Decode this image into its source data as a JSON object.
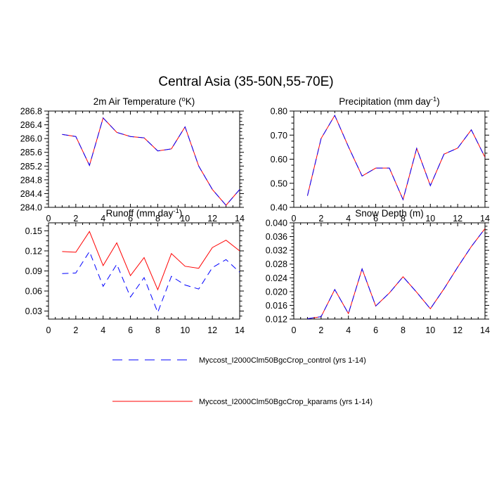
{
  "title": "Central Asia (35-50N,55-70E)",
  "legend": {
    "placement": "bottom-center",
    "entries": [
      {
        "label": "Myccost_I2000Clm50BgcCrop_control (yrs 1-14)",
        "color": "#0000ff",
        "dash": "dashed"
      },
      {
        "label": "Myccost_I2000Clm50BgcCrop_kparams (yrs 1-14)",
        "color": "#ff0000",
        "dash": "solid"
      }
    ]
  },
  "chart_data": [
    {
      "type": "line",
      "title": "2m Air Temperature (°K)",
      "title_parts": [
        "2m Air Temperature (",
        "o",
        "K)"
      ],
      "xlim": [
        0,
        14
      ],
      "xticks": [
        0,
        2,
        4,
        6,
        8,
        10,
        12,
        14
      ],
      "ylim": [
        284.0,
        286.8
      ],
      "yticks": [
        284.0,
        284.4,
        284.8,
        285.2,
        285.6,
        286.0,
        286.4,
        286.8
      ],
      "ytick_labels": [
        "284.0",
        "284.4",
        "284.8",
        "285.2",
        "285.6",
        "286.0",
        "286.4",
        "286.8"
      ],
      "grid": false,
      "x": [
        1,
        2,
        3,
        4,
        5,
        6,
        7,
        8,
        9,
        10,
        11,
        12,
        13,
        14
      ],
      "series": [
        {
          "values": [
            286.12,
            286.06,
            285.22,
            286.6,
            286.18,
            286.06,
            286.02,
            285.64,
            285.7,
            286.34,
            285.2,
            284.52,
            284.06,
            284.52
          ]
        },
        {
          "values": [
            286.12,
            286.06,
            285.22,
            286.6,
            286.18,
            286.06,
            286.02,
            285.64,
            285.7,
            286.34,
            285.2,
            284.52,
            284.06,
            284.52
          ]
        }
      ]
    },
    {
      "type": "line",
      "title": "Precipitation (mm day-1)",
      "title_parts": [
        "Precipitation (mm day",
        "-1",
        ")"
      ],
      "xlim": [
        0,
        14
      ],
      "xticks": [
        0,
        2,
        4,
        6,
        8,
        10,
        12,
        14
      ],
      "ylim": [
        0.4,
        0.8
      ],
      "yticks": [
        0.4,
        0.5,
        0.6,
        0.7,
        0.8
      ],
      "ytick_labels": [
        "0.40",
        "0.50",
        "0.60",
        "0.70",
        "0.80"
      ],
      "grid": false,
      "x": [
        1,
        2,
        3,
        4,
        5,
        6,
        7,
        8,
        9,
        10,
        11,
        12,
        13,
        14
      ],
      "series": [
        {
          "values": [
            0.448,
            0.686,
            0.782,
            0.652,
            0.53,
            0.563,
            0.563,
            0.432,
            0.645,
            0.49,
            0.621,
            0.646,
            0.722,
            0.608
          ]
        },
        {
          "values": [
            0.448,
            0.686,
            0.782,
            0.652,
            0.53,
            0.563,
            0.563,
            0.432,
            0.645,
            0.49,
            0.621,
            0.646,
            0.722,
            0.608
          ]
        }
      ]
    },
    {
      "type": "line",
      "title": "Runoff (mm day-1)",
      "title_parts": [
        "Runoff (mm day",
        "-1",
        ")"
      ],
      "xlim": [
        0,
        14
      ],
      "xticks": [
        0,
        2,
        4,
        6,
        8,
        10,
        12,
        14
      ],
      "ylim": [
        0.018,
        0.162
      ],
      "yticks": [
        0.03,
        0.06,
        0.09,
        0.12,
        0.15
      ],
      "ytick_labels": [
        "0.03",
        "0.06",
        "0.09",
        "0.12",
        "0.15"
      ],
      "grid": false,
      "x": [
        1,
        2,
        3,
        4,
        5,
        6,
        7,
        8,
        9,
        10,
        11,
        12,
        13,
        14
      ],
      "series": [
        {
          "values": [
            0.086,
            0.087,
            0.119,
            0.067,
            0.1,
            0.051,
            0.08,
            0.028,
            0.082,
            0.069,
            0.063,
            0.095,
            0.107,
            0.088
          ]
        },
        {
          "values": [
            0.119,
            0.118,
            0.149,
            0.098,
            0.132,
            0.083,
            0.11,
            0.062,
            0.116,
            0.097,
            0.094,
            0.125,
            0.136,
            0.12
          ]
        }
      ]
    },
    {
      "type": "line",
      "title": "Snow Depth (m)",
      "title_parts": [
        "Snow Depth (m)"
      ],
      "xlim": [
        0,
        14
      ],
      "xticks": [
        0,
        2,
        4,
        6,
        8,
        10,
        12,
        14
      ],
      "ylim": [
        0.012,
        0.04
      ],
      "yticks": [
        0.012,
        0.016,
        0.02,
        0.024,
        0.028,
        0.032,
        0.036,
        0.04
      ],
      "ytick_labels": [
        "0.012",
        "0.016",
        "0.020",
        "0.024",
        "0.028",
        "0.032",
        "0.036",
        "0.040"
      ],
      "grid": false,
      "x": [
        1,
        2,
        3,
        4,
        5,
        6,
        7,
        8,
        9,
        10,
        11,
        12,
        13,
        14
      ],
      "series": [
        {
          "values": [
            0.0121,
            0.0127,
            0.0206,
            0.0136,
            0.0266,
            0.0158,
            0.0196,
            0.0243,
            0.0198,
            0.015,
            0.0208,
            0.0271,
            0.0331,
            0.0383
          ]
        },
        {
          "values": [
            0.0121,
            0.0127,
            0.0206,
            0.0136,
            0.0266,
            0.0158,
            0.0196,
            0.0243,
            0.0198,
            0.015,
            0.0208,
            0.0271,
            0.0331,
            0.0383
          ]
        }
      ]
    }
  ]
}
